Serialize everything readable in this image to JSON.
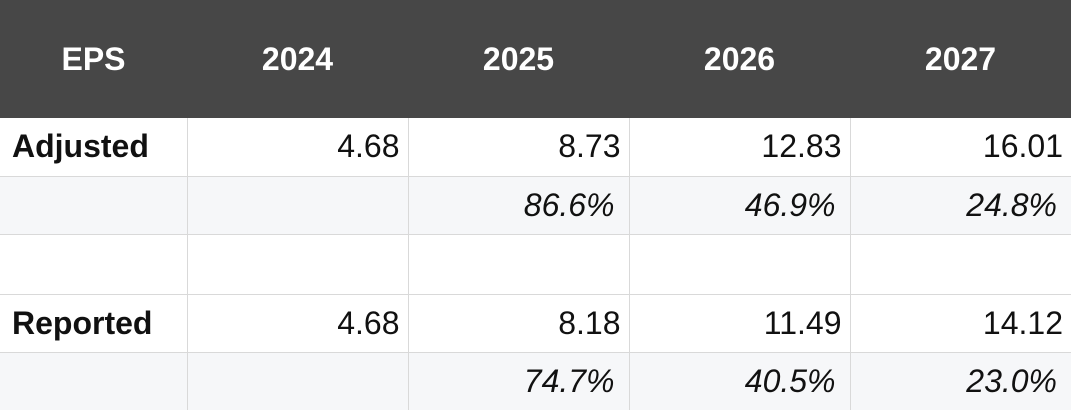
{
  "table": {
    "header": [
      "EPS",
      "2024",
      "2025",
      "2026",
      "2027"
    ],
    "adjusted": {
      "label": "Adjusted",
      "values": [
        "4.68",
        "8.73",
        "12.83",
        "16.01"
      ],
      "growth": [
        "86.6%",
        "46.9%",
        "24.8%"
      ]
    },
    "reported": {
      "label": "Reported",
      "values": [
        "4.68",
        "8.18",
        "11.49",
        "14.12"
      ],
      "growth": [
        "74.7%",
        "40.5%",
        "23.0%"
      ]
    }
  }
}
